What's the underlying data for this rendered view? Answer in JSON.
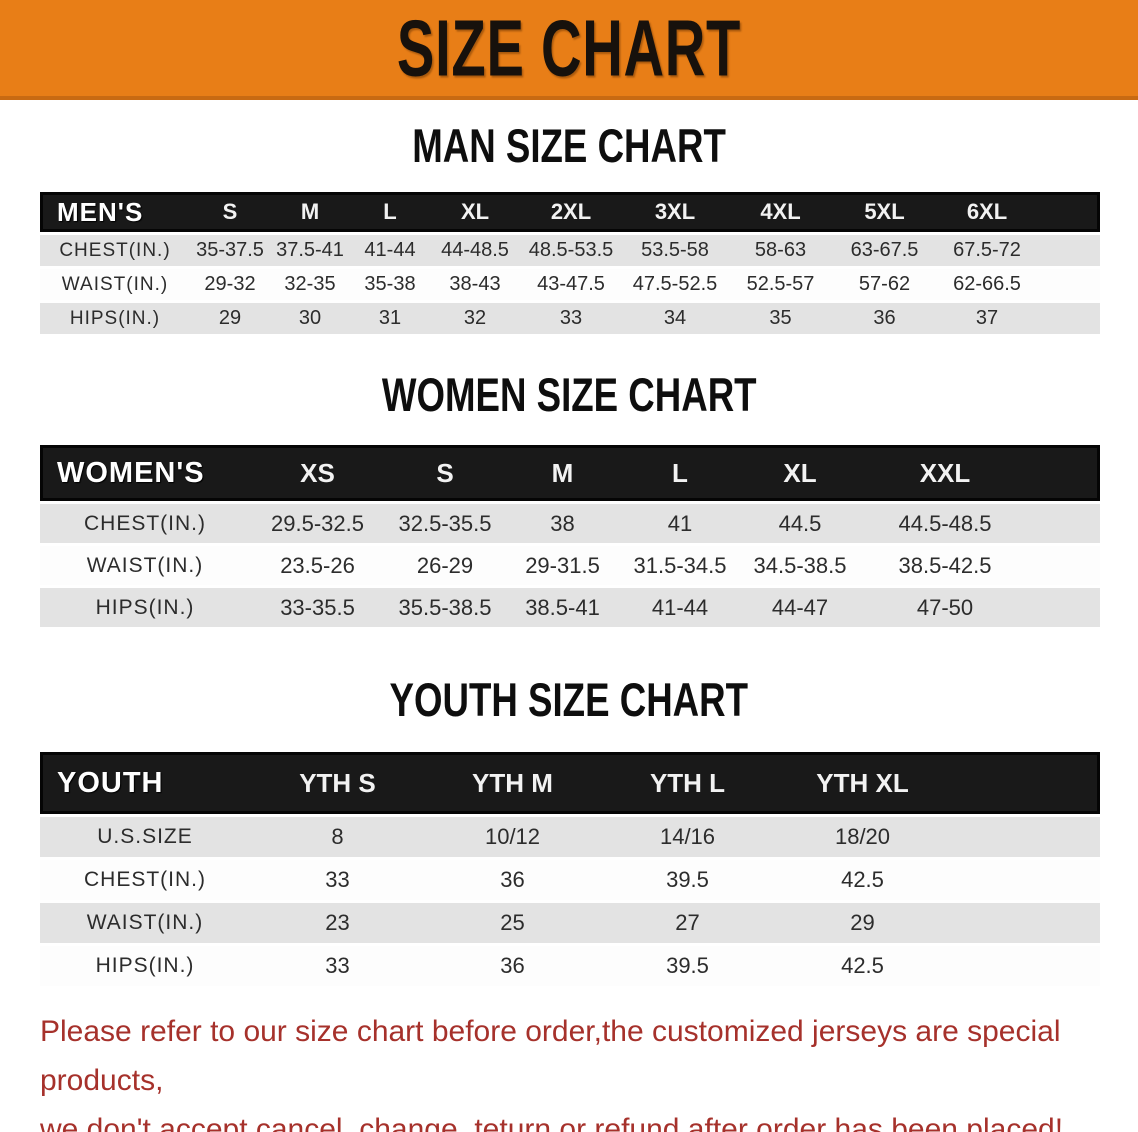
{
  "banner": {
    "title": "SIZE CHART"
  },
  "tables": {
    "men": {
      "heading": "MAN SIZE CHART",
      "label_header": "MEN'S",
      "size_headers": [
        "S",
        "M",
        "L",
        "XL",
        "2XL",
        "3XL",
        "4XL",
        "5XL",
        "6XL"
      ],
      "rows": [
        {
          "label": "CHEST(IN.)",
          "values": [
            "35-37.5",
            "37.5-41",
            "41-44",
            "44-48.5",
            "48.5-53.5",
            "53.5-58",
            "58-63",
            "63-67.5",
            "67.5-72"
          ]
        },
        {
          "label": "WAIST(IN.)",
          "values": [
            "29-32",
            "32-35",
            "35-38",
            "38-43",
            "43-47.5",
            "47.5-52.5",
            "52.5-57",
            "57-62",
            "62-66.5"
          ]
        },
        {
          "label": "HIPS(IN.)",
          "values": [
            "29",
            "30",
            "31",
            "32",
            "33",
            "34",
            "35",
            "36",
            "37"
          ]
        }
      ]
    },
    "women": {
      "heading": "WOMEN SIZE CHART",
      "label_header": "WOMEN'S",
      "size_headers": [
        "XS",
        "S",
        "M",
        "L",
        "XL",
        "XXL"
      ],
      "rows": [
        {
          "label": "CHEST(IN.)",
          "values": [
            "29.5-32.5",
            "32.5-35.5",
            "38",
            "41",
            "44.5",
            "44.5-48.5"
          ]
        },
        {
          "label": "WAIST(IN.)",
          "values": [
            "23.5-26",
            "26-29",
            "29-31.5",
            "31.5-34.5",
            "34.5-38.5",
            "38.5-42.5"
          ]
        },
        {
          "label": "HIPS(IN.)",
          "values": [
            "33-35.5",
            "35.5-38.5",
            "38.5-41",
            "41-44",
            "44-47",
            "47-50"
          ]
        }
      ]
    },
    "youth": {
      "heading": "YOUTH SIZE CHART",
      "label_header": "YOUTH",
      "size_headers": [
        "YTH S",
        "YTH M",
        "YTH L",
        "YTH XL"
      ],
      "rows": [
        {
          "label": "U.S.SIZE",
          "values": [
            "8",
            "10/12",
            "14/16",
            "18/20"
          ]
        },
        {
          "label": "CHEST(IN.)",
          "values": [
            "33",
            "36",
            "39.5",
            "42.5"
          ]
        },
        {
          "label": "WAIST(IN.)",
          "values": [
            "23",
            "25",
            "27",
            "29"
          ]
        },
        {
          "label": "HIPS(IN.)",
          "values": [
            "33",
            "36",
            "39.5",
            "42.5"
          ]
        }
      ]
    }
  },
  "note": {
    "line1": "Please refer to our size chart before order,the customized jerseys are special products,",
    "line2": "we don't accept cancel, change, teturn or refund after order has been placed!"
  },
  "colors": {
    "banner_orange": "#e87e17",
    "banner_border": "#c86a12",
    "header_black": "#191919",
    "stripe_gray": "#e3e3e3",
    "stripe_white": "#fdfdfd",
    "note_red": "#a6312b"
  }
}
